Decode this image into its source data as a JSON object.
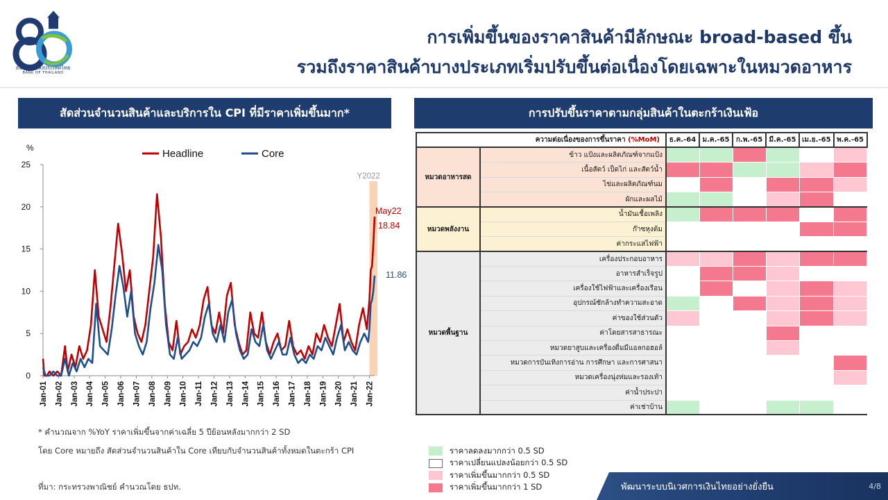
{
  "header": {
    "logo_text_th": "ธนาคารแห่งประเทศไทย",
    "logo_text_en": "BANK OF THAILAND",
    "title_line1": "การเพิ่มขึ้นของราคาสินค้ามีลักษณะ broad-based ขึ้น",
    "title_line2": "รวมถึงราคาสินค้าบางประเภทเริ่มปรับขึ้นต่อเนื่องโดยเฉพาะในหมวดอาหาร"
  },
  "left_panel": {
    "title": "สัดส่วนจำนวนสินค้าและบริการใน  CPI ที่มีราคาเพิ่มขึ้นมาก*",
    "note1": "* คำนวณจาก %YoY ราคาเพิ่มขึ้นจากค่าเฉลี่ย 5 ปีย้อนหลังมากกว่า 2 SD",
    "note2": "โดย Core หมายถึง สัดส่วนจำนวนสินค้าใน Core เทียบกับจำนวนสินค้าทั้งหมดในตะกร้า  CPI",
    "source": "ที่มา: กระทรวงพาณิชย์ คำนวณโดย ธปท."
  },
  "chart_data": {
    "type": "line",
    "ylabel": "%",
    "ylim": [
      0,
      25
    ],
    "yticks": [
      0,
      5,
      10,
      15,
      20,
      25
    ],
    "xticks": [
      "Jan-01",
      "Jan-02",
      "Jan-03",
      "Jan-04",
      "Jan-05",
      "Jan-06",
      "Jan-07",
      "Jan-08",
      "Jan-09",
      "Jan-10",
      "Jan-11",
      "Jan-12",
      "Jan-13",
      "Jan-14",
      "Jan-15",
      "Jan-16",
      "Jan-17",
      "Jan-18",
      "Jan-19",
      "Jan-20",
      "Jan-21",
      "Jan-22"
    ],
    "x_start": "2001-01",
    "x_end": "2022-05",
    "highlight": {
      "label": "Y2022",
      "from": "2022-01",
      "to": "2022-05",
      "color": "#f8d3b4"
    },
    "legend_position": "top",
    "series": [
      {
        "name": "Headline",
        "color": "#c00000",
        "end_label": "May22",
        "end_value_label": "18.84",
        "points": [
          [
            "2001-01",
            2.0
          ],
          [
            "2001-02",
            0.0
          ],
          [
            "2001-04",
            0.0
          ],
          [
            "2001-06",
            0.5
          ],
          [
            "2001-09",
            0.0
          ],
          [
            "2001-12",
            0.5
          ],
          [
            "2002-03",
            0.0
          ],
          [
            "2002-06",
            3.5
          ],
          [
            "2002-08",
            0.5
          ],
          [
            "2002-11",
            2.5
          ],
          [
            "2003-02",
            1.0
          ],
          [
            "2003-05",
            3.5
          ],
          [
            "2003-08",
            2.0
          ],
          [
            "2003-11",
            3.0
          ],
          [
            "2004-02",
            6.0
          ],
          [
            "2004-05",
            12.5
          ],
          [
            "2004-08",
            7.0
          ],
          [
            "2004-11",
            5.5
          ],
          [
            "2005-02",
            4.0
          ],
          [
            "2005-05",
            8.0
          ],
          [
            "2005-08",
            13.0
          ],
          [
            "2005-11",
            18.0
          ],
          [
            "2006-02",
            14.5
          ],
          [
            "2006-05",
            10.0
          ],
          [
            "2006-08",
            12.5
          ],
          [
            "2006-11",
            7.0
          ],
          [
            "2007-02",
            5.0
          ],
          [
            "2007-05",
            4.0
          ],
          [
            "2007-08",
            6.0
          ],
          [
            "2007-11",
            10.0
          ],
          [
            "2008-02",
            14.0
          ],
          [
            "2008-05",
            21.5
          ],
          [
            "2008-08",
            16.5
          ],
          [
            "2008-11",
            8.5
          ],
          [
            "2009-02",
            4.0
          ],
          [
            "2009-05",
            3.0
          ],
          [
            "2009-08",
            6.5
          ],
          [
            "2009-11",
            2.5
          ],
          [
            "2010-02",
            3.5
          ],
          [
            "2010-05",
            4.0
          ],
          [
            "2010-08",
            5.5
          ],
          [
            "2010-11",
            4.5
          ],
          [
            "2011-02",
            6.0
          ],
          [
            "2011-05",
            9.0
          ],
          [
            "2011-08",
            10.5
          ],
          [
            "2011-11",
            6.0
          ],
          [
            "2012-02",
            5.0
          ],
          [
            "2012-05",
            7.5
          ],
          [
            "2012-08",
            5.0
          ],
          [
            "2012-11",
            9.5
          ],
          [
            "2013-02",
            11.0
          ],
          [
            "2013-05",
            6.0
          ],
          [
            "2013-08",
            4.0
          ],
          [
            "2013-11",
            2.5
          ],
          [
            "2014-02",
            3.0
          ],
          [
            "2014-05",
            7.5
          ],
          [
            "2014-08",
            5.0
          ],
          [
            "2014-11",
            4.5
          ],
          [
            "2015-02",
            7.5
          ],
          [
            "2015-05",
            4.0
          ],
          [
            "2015-08",
            2.5
          ],
          [
            "2015-11",
            4.0
          ],
          [
            "2016-02",
            5.0
          ],
          [
            "2016-05",
            3.0
          ],
          [
            "2016-08",
            3.5
          ],
          [
            "2016-11",
            6.5
          ],
          [
            "2017-02",
            3.5
          ],
          [
            "2017-05",
            2.5
          ],
          [
            "2017-08",
            3.0
          ],
          [
            "2017-11",
            2.0
          ],
          [
            "2018-02",
            3.5
          ],
          [
            "2018-05",
            2.5
          ],
          [
            "2018-08",
            5.0
          ],
          [
            "2018-11",
            4.0
          ],
          [
            "2019-02",
            6.0
          ],
          [
            "2019-05",
            4.5
          ],
          [
            "2019-08",
            3.5
          ],
          [
            "2019-11",
            6.0
          ],
          [
            "2020-02",
            8.5
          ],
          [
            "2020-05",
            4.0
          ],
          [
            "2020-08",
            5.5
          ],
          [
            "2020-11",
            4.0
          ],
          [
            "2021-02",
            3.0
          ],
          [
            "2021-05",
            6.0
          ],
          [
            "2021-08",
            8.0
          ],
          [
            "2021-11",
            5.5
          ],
          [
            "2022-01",
            9.0
          ],
          [
            "2022-02",
            12.5
          ],
          [
            "2022-03",
            13.0
          ],
          [
            "2022-04",
            15.5
          ],
          [
            "2022-05",
            18.84
          ]
        ]
      },
      {
        "name": "Core",
        "color": "#1f4e8c",
        "end_value_label": "11.86",
        "points": [
          [
            "2001-01",
            1.0
          ],
          [
            "2001-03",
            0.0
          ],
          [
            "2001-06",
            0.0
          ],
          [
            "2001-09",
            0.5
          ],
          [
            "2001-12",
            0.0
          ],
          [
            "2002-03",
            0.0
          ],
          [
            "2002-06",
            2.0
          ],
          [
            "2002-09",
            0.0
          ],
          [
            "2002-12",
            1.5
          ],
          [
            "2003-03",
            0.5
          ],
          [
            "2003-06",
            2.0
          ],
          [
            "2003-09",
            1.0
          ],
          [
            "2003-12",
            2.0
          ],
          [
            "2004-03",
            1.5
          ],
          [
            "2004-06",
            8.5
          ],
          [
            "2004-09",
            3.5
          ],
          [
            "2004-12",
            3.0
          ],
          [
            "2005-03",
            2.5
          ],
          [
            "2005-06",
            5.5
          ],
          [
            "2005-09",
            9.5
          ],
          [
            "2005-12",
            13.0
          ],
          [
            "2006-03",
            10.5
          ],
          [
            "2006-06",
            7.0
          ],
          [
            "2006-09",
            10.0
          ],
          [
            "2006-12",
            5.0
          ],
          [
            "2007-03",
            3.5
          ],
          [
            "2007-06",
            2.5
          ],
          [
            "2007-09",
            4.0
          ],
          [
            "2007-12",
            8.0
          ],
          [
            "2008-03",
            11.0
          ],
          [
            "2008-06",
            15.5
          ],
          [
            "2008-09",
            12.5
          ],
          [
            "2008-12",
            6.0
          ],
          [
            "2009-03",
            2.5
          ],
          [
            "2009-06",
            2.0
          ],
          [
            "2009-09",
            4.5
          ],
          [
            "2009-12",
            2.0
          ],
          [
            "2010-03",
            2.5
          ],
          [
            "2010-06",
            3.0
          ],
          [
            "2010-09",
            4.0
          ],
          [
            "2010-12",
            3.5
          ],
          [
            "2011-03",
            4.5
          ],
          [
            "2011-06",
            7.0
          ],
          [
            "2011-09",
            8.5
          ],
          [
            "2011-12",
            5.0
          ],
          [
            "2012-03",
            4.0
          ],
          [
            "2012-06",
            6.0
          ],
          [
            "2012-09",
            4.0
          ],
          [
            "2012-12",
            7.5
          ],
          [
            "2013-03",
            9.0
          ],
          [
            "2013-06",
            5.0
          ],
          [
            "2013-09",
            3.0
          ],
          [
            "2013-12",
            2.0
          ],
          [
            "2014-03",
            2.5
          ],
          [
            "2014-06",
            5.5
          ],
          [
            "2014-09",
            4.0
          ],
          [
            "2014-12",
            3.5
          ],
          [
            "2015-03",
            6.0
          ],
          [
            "2015-06",
            3.0
          ],
          [
            "2015-09",
            2.0
          ],
          [
            "2015-12",
            3.0
          ],
          [
            "2016-03",
            4.0
          ],
          [
            "2016-06",
            2.5
          ],
          [
            "2016-09",
            2.5
          ],
          [
            "2016-12",
            4.5
          ],
          [
            "2017-03",
            2.5
          ],
          [
            "2017-06",
            1.5
          ],
          [
            "2017-09",
            2.0
          ],
          [
            "2017-12",
            1.5
          ],
          [
            "2018-03",
            2.5
          ],
          [
            "2018-06",
            2.0
          ],
          [
            "2018-09",
            3.5
          ],
          [
            "2018-12",
            3.0
          ],
          [
            "2019-03",
            4.5
          ],
          [
            "2019-06",
            3.5
          ],
          [
            "2019-09",
            2.5
          ],
          [
            "2019-12",
            4.5
          ],
          [
            "2020-03",
            6.0
          ],
          [
            "2020-06",
            3.0
          ],
          [
            "2020-09",
            4.0
          ],
          [
            "2020-12",
            3.0
          ],
          [
            "2021-03",
            2.5
          ],
          [
            "2021-06",
            4.0
          ],
          [
            "2021-09",
            5.0
          ],
          [
            "2021-12",
            4.0
          ],
          [
            "2022-01",
            5.5
          ],
          [
            "2022-02",
            8.5
          ],
          [
            "2022-03",
            9.0
          ],
          [
            "2022-04",
            10.0
          ],
          [
            "2022-05",
            11.86
          ]
        ]
      }
    ]
  },
  "right_panel": {
    "title": "การปรับขึ้นราคาตามกลุ่มสินค้าในตะกร้าเงินเฟ้อ",
    "table_header_label": "ความต่อเนื่องของการขึ้นราคา",
    "table_header_unit": "(%MoM)",
    "months": [
      "ธ.ค.-64",
      "ม.ค.-65",
      "ก.พ.-65",
      "มี.ค.-65",
      "เม.ย.-65",
      "พ.ค.-65"
    ],
    "colors": {
      "g": "#c6efce",
      "w": "#ffffff",
      "p": "#ffc7d1",
      "r": "#f4798f"
    },
    "groups": [
      {
        "name": "หมวดอาหารสด",
        "bg": "#fbe2d5",
        "rows": [
          {
            "label": "ข้าว แป้งและผลิตภัณฑ์จากแป้ง",
            "cells": [
              "g",
              "g",
              "r",
              "g",
              "w",
              "p"
            ]
          },
          {
            "label": "เนื้อสัตว์ เป็ดไก่ และสัตว์น้ำ",
            "cells": [
              "r",
              "r",
              "g",
              "g",
              "p",
              "r"
            ]
          },
          {
            "label": "ไข่และผลิตภัณฑ์นม",
            "cells": [
              "w",
              "r",
              "w",
              "r",
              "r",
              "p"
            ]
          },
          {
            "label": "ผักและผลไม้",
            "cells": [
              "g",
              "g",
              "w",
              "p",
              "r",
              "w"
            ]
          }
        ]
      },
      {
        "name": "หมวดพลังงาน",
        "bg": "#fdf1d3",
        "rows": [
          {
            "label": "น้ำมันเชื้อเพลิง",
            "cells": [
              "g",
              "r",
              "r",
              "r",
              "w",
              "r"
            ]
          },
          {
            "label": "ก๊าซหุงต้ม",
            "cells": [
              "w",
              "w",
              "w",
              "w",
              "r",
              "r"
            ]
          },
          {
            "label": "ค่ากระแสไฟฟ้า",
            "cells": [
              "w",
              "w",
              "w",
              "w",
              "w",
              "w"
            ]
          }
        ]
      },
      {
        "name": "หมวดพื้นฐาน",
        "bg": "#ececec",
        "rows": [
          {
            "label": "เครื่องประกอบอาหาร",
            "cells": [
              "p",
              "p",
              "r",
              "p",
              "r",
              "r"
            ]
          },
          {
            "label": "อาหารสำเร็จรูป",
            "cells": [
              "w",
              "r",
              "r",
              "p",
              "w",
              "w"
            ]
          },
          {
            "label": "เครื่องใช้ไฟฟ้าและเครื่องเรือน",
            "cells": [
              "w",
              "r",
              "w",
              "p",
              "r",
              "p"
            ]
          },
          {
            "label": "อุปกรณ์ซักล้างทำความสะอาด",
            "cells": [
              "g",
              "w",
              "r",
              "p",
              "r",
              "p"
            ]
          },
          {
            "label": "ค่าของใช้ส่วนตัว",
            "cells": [
              "p",
              "w",
              "w",
              "p",
              "r",
              "p"
            ]
          },
          {
            "label": "ค่าโดยสารสาธารณะ",
            "cells": [
              "w",
              "w",
              "w",
              "r",
              "w",
              "w"
            ]
          },
          {
            "label": "หมวดยาสูบและเครื่องดื่มมีแอลกอฮอล์",
            "cells": [
              "w",
              "w",
              "w",
              "p",
              "w",
              "w"
            ]
          },
          {
            "label": "หมวดการบันเทิงการอ่าน การศึกษา และการศาสนา",
            "cells": [
              "w",
              "w",
              "w",
              "w",
              "w",
              "r"
            ]
          },
          {
            "label": "หมวดเครื่องนุ่งห่มและรองเท้า",
            "cells": [
              "w",
              "w",
              "w",
              "w",
              "w",
              "p"
            ]
          },
          {
            "label": "ค่าน้ำประปา",
            "cells": [
              "w",
              "w",
              "w",
              "w",
              "w",
              "w"
            ]
          },
          {
            "label": "ค่าเช่าบ้าน",
            "cells": [
              "g",
              "w",
              "w",
              "g",
              "g",
              "w"
            ]
          }
        ]
      }
    ],
    "legend": [
      {
        "key": "g",
        "label": "ราคาลดลงมากกว่า 0.5 SD"
      },
      {
        "key": "w",
        "label": "ราคาเปลี่ยนแปลงน้อยกว่า 0.5 SD"
      },
      {
        "key": "p",
        "label": "ราคาเพิ่มขึ้นมากกว่า 0.5 SD"
      },
      {
        "key": "r",
        "label": "ราคาเพิ่มขึ้นมากกว่า 1 SD"
      }
    ]
  },
  "footer": {
    "text": "พัฒนาระบบนิเวศการเงินไทยอย่างยั่งยืน",
    "page": "4/8"
  }
}
